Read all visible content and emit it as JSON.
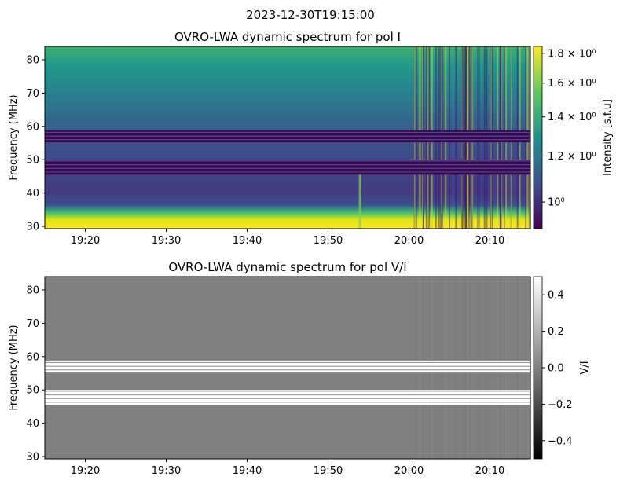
{
  "suptitle": "2023-12-30T19:15:00",
  "chart_data": [
    {
      "type": "heatmap",
      "title": "OVRO-LWA dynamic spectrum for pol I",
      "xlabel": "",
      "ylabel": "Frequency (MHz)",
      "xlim_minutes_after_1915": [
        0,
        60
      ],
      "ylim": [
        29.3,
        84
      ],
      "xticks": [
        {
          "label": "19:20",
          "min": 5
        },
        {
          "label": "19:30",
          "min": 15
        },
        {
          "label": "19:40",
          "min": 25
        },
        {
          "label": "19:50",
          "min": 35
        },
        {
          "label": "20:00",
          "min": 45
        },
        {
          "label": "20:10",
          "min": 55
        }
      ],
      "yticks": [
        30,
        40,
        50,
        60,
        70,
        80
      ],
      "colorbar": {
        "label": "Intensity [s.f.u]",
        "scale": "log",
        "range": [
          0.9,
          1.85
        ],
        "cmap": "viridis",
        "ticks": [
          {
            "label": "1.8 × 10⁰",
            "v": 1.8
          },
          {
            "label": "1.6 × 10⁰",
            "v": 1.6
          },
          {
            "label": "1.4 × 10⁰",
            "v": 1.4
          },
          {
            "label": "1.2 × 10⁰",
            "v": 1.2
          },
          {
            "label": "10⁰",
            "v": 1.0
          }
        ]
      },
      "flagged_bands_mhz": [
        [
          45.5,
          50
        ],
        [
          55.2,
          58.8
        ]
      ],
      "features": {
        "burst_minute": 38.8,
        "rfi_start_minute": 45.5
      }
    },
    {
      "type": "heatmap",
      "title": "OVRO-LWA dynamic spectrum for pol V/I",
      "xlabel": "",
      "ylabel": "Frequency (MHz)",
      "xlim_minutes_after_1915": [
        0,
        60
      ],
      "ylim": [
        29.3,
        84
      ],
      "xticks": [
        {
          "label": "19:20",
          "min": 5
        },
        {
          "label": "19:30",
          "min": 15
        },
        {
          "label": "19:40",
          "min": 25
        },
        {
          "label": "19:50",
          "min": 35
        },
        {
          "label": "20:00",
          "min": 45
        },
        {
          "label": "20:10",
          "min": 55
        }
      ],
      "yticks": [
        30,
        40,
        50,
        60,
        70,
        80
      ],
      "colorbar": {
        "label": "V/I",
        "scale": "linear",
        "range": [
          -0.5,
          0.5
        ],
        "cmap": "gray",
        "ticks": [
          {
            "label": "0.4",
            "v": 0.4
          },
          {
            "label": "0.2",
            "v": 0.2
          },
          {
            "label": "0.0",
            "v": 0.0
          },
          {
            "label": "−0.2",
            "v": -0.2
          },
          {
            "label": "−0.4",
            "v": -0.4
          }
        ]
      },
      "flagged_bands_mhz": [
        [
          45.5,
          50
        ],
        [
          55.2,
          58.8
        ]
      ]
    }
  ]
}
